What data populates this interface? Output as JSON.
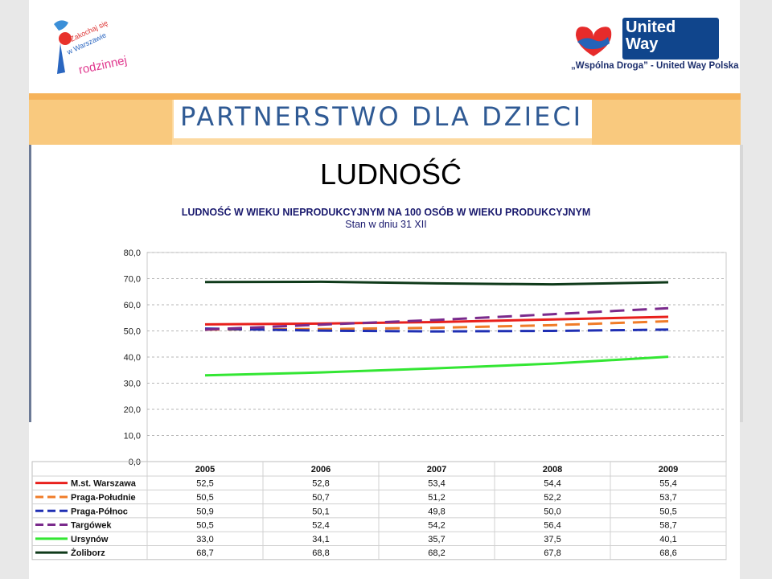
{
  "logos": {
    "left_logo_text": [
      "Zakochaj się",
      "w Warszawie",
      "rodzinnej"
    ],
    "right_logo_name": "United Way",
    "right_logo_tagline": "„Wspólna Droga” - United Way Polska"
  },
  "banner": {
    "title": "PARTNERSTWO DLA DZIECI"
  },
  "page": {
    "title": "LUDNOŚĆ"
  },
  "chart_data": {
    "type": "line",
    "title": "LUDNOŚĆ W WIEKU NIEPRODUKCYJNYM NA 100 OSÓB W WIEKU PRODUKCYJNYM",
    "subtitle": "Stan w dniu 31 XII",
    "categories": [
      "2005",
      "2006",
      "2007",
      "2008",
      "2009"
    ],
    "ylim": [
      0,
      80
    ],
    "yticks": [
      "0,0",
      "10,0",
      "20,0",
      "30,0",
      "40,0",
      "50,0",
      "60,0",
      "70,0",
      "80,0"
    ],
    "grid": true,
    "legend": "data-table-below",
    "series": [
      {
        "name": "M.st. Warszawa",
        "values": [
          52.5,
          52.8,
          53.4,
          54.4,
          55.4
        ],
        "labels": [
          "52,5",
          "52,8",
          "53,4",
          "54,4",
          "55,4"
        ],
        "color": "#e8201c",
        "dash": "solid"
      },
      {
        "name": "Praga-Południe",
        "values": [
          50.5,
          50.7,
          51.2,
          52.2,
          53.7
        ],
        "labels": [
          "50,5",
          "50,7",
          "51,2",
          "52,2",
          "53,7"
        ],
        "color": "#f07c28",
        "dash": "dashed"
      },
      {
        "name": "Praga-Północ",
        "values": [
          50.9,
          50.1,
          49.8,
          50.0,
          50.5
        ],
        "labels": [
          "50,9",
          "50,1",
          "49,8",
          "50,0",
          "50,5"
        ],
        "color": "#1f2fb3",
        "dash": "dashed"
      },
      {
        "name": "Targówek",
        "values": [
          50.5,
          52.4,
          54.2,
          56.4,
          58.7
        ],
        "labels": [
          "50,5",
          "52,4",
          "54,2",
          "56,4",
          "58,7"
        ],
        "color": "#7a2a8c",
        "dash": "dashed"
      },
      {
        "name": "Ursynów",
        "values": [
          33.0,
          34.1,
          35.7,
          37.5,
          40.1
        ],
        "labels": [
          "33,0",
          "34,1",
          "35,7",
          "37,5",
          "40,1"
        ],
        "color": "#33e633",
        "dash": "solid"
      },
      {
        "name": "Żoliborz",
        "values": [
          68.7,
          68.8,
          68.2,
          67.8,
          68.6
        ],
        "labels": [
          "68,7",
          "68,8",
          "68,2",
          "67,8",
          "68,6"
        ],
        "color": "#0f3a1a",
        "dash": "solid"
      }
    ]
  }
}
